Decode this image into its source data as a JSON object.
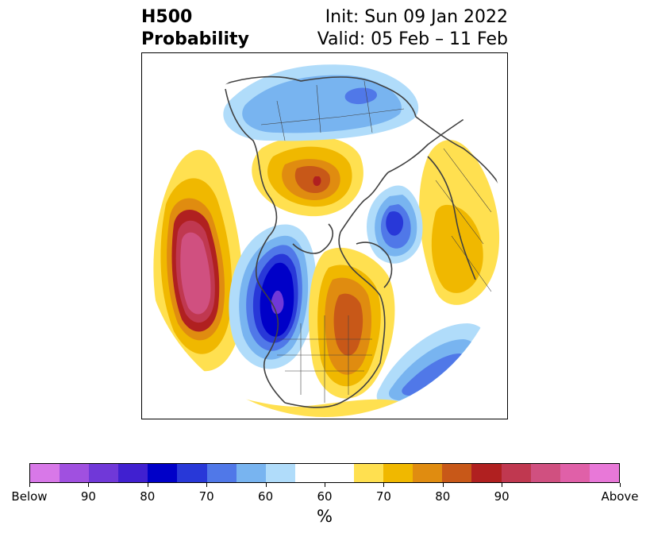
{
  "title": {
    "left_line1": "H500",
    "left_line2": "Probability",
    "right_line1": "Init: Sun 09 Jan 2022",
    "right_line2": "Valid: 05 Feb – 11 Feb"
  },
  "map": {
    "projection": "north-polar-stereographic",
    "coastline_color": "#404040"
  },
  "colorbar": {
    "colors": [
      "#d878e8",
      "#a050e0",
      "#7038d8",
      "#4020d0",
      "#0000c8",
      "#2838d8",
      "#5078e8",
      "#78b4f0",
      "#b0dcfa",
      "#ffffff",
      "#ffffff",
      "#ffe050",
      "#f0b800",
      "#e08c10",
      "#c85818",
      "#b02020",
      "#c03850",
      "#d05080",
      "#e060a8",
      "#e878d8"
    ],
    "tick_labels": [
      "Below",
      "90",
      "80",
      "70",
      "60",
      "60",
      "70",
      "80",
      "90",
      "Above"
    ],
    "unit": "%"
  }
}
